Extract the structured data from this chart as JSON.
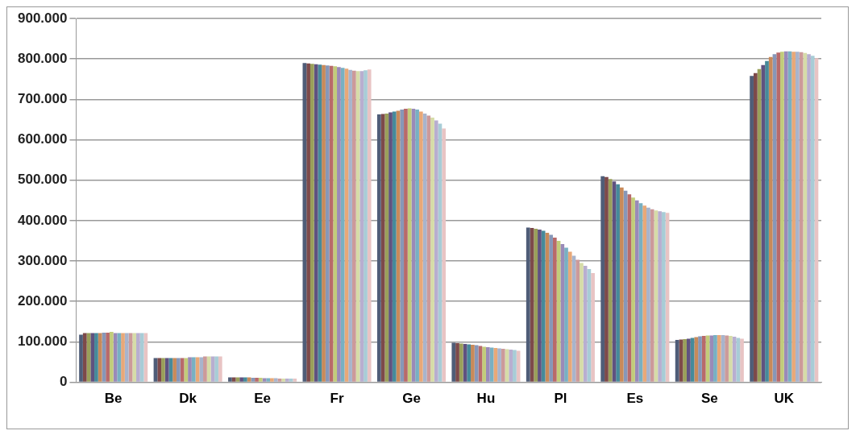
{
  "chart_data": {
    "type": "bar",
    "categories": [
      "Be",
      "Dk",
      "Ee",
      "Fr",
      "Ge",
      "Hu",
      "Pl",
      "Es",
      "Se",
      "UK"
    ],
    "ylim": [
      0,
      900000
    ],
    "yticks": [
      0,
      {
        "value": 100000,
        "label": "100.000"
      },
      {
        "value": 200000,
        "label": "200.000"
      },
      {
        "value": 300000,
        "label": "300.000"
      },
      {
        "value": 400000,
        "label": "400.000"
      },
      {
        "value": 500000,
        "label": "500.000"
      },
      {
        "value": 600000,
        "label": "600.000"
      },
      {
        "value": 700000,
        "label": "700.000"
      },
      {
        "value": 800000,
        "label": "800.000"
      },
      {
        "value": 900000,
        "label": "900.000"
      }
    ],
    "grid": "y",
    "legend": false,
    "series": [
      {
        "color": "#4f5d78",
        "values": [
          118000,
          60000,
          12000,
          790000,
          663000,
          98000,
          383000,
          510000,
          105000,
          758000
        ]
      },
      {
        "color": "#7d4a4a",
        "values": [
          122000,
          60000,
          12000,
          789000,
          664000,
          97000,
          382000,
          508000,
          106000,
          765000
        ]
      },
      {
        "color": "#9aa05a",
        "values": [
          122000,
          60000,
          12000,
          788000,
          665000,
          96000,
          380000,
          503000,
          107000,
          775000
        ]
      },
      {
        "color": "#5f5280",
        "values": [
          122000,
          60000,
          12000,
          787000,
          668000,
          95000,
          378000,
          497000,
          108000,
          785000
        ]
      },
      {
        "color": "#468a9a",
        "values": [
          122000,
          60000,
          12000,
          786000,
          670000,
          94000,
          375000,
          490000,
          110000,
          795000
        ]
      },
      {
        "color": "#c88a5a",
        "values": [
          122000,
          60000,
          12000,
          785000,
          672000,
          93000,
          370000,
          482000,
          112000,
          805000
        ]
      },
      {
        "color": "#8797b8",
        "values": [
          123000,
          60000,
          11000,
          784000,
          675000,
          92000,
          365000,
          474000,
          114000,
          812000
        ]
      },
      {
        "color": "#b86a6a",
        "values": [
          123000,
          60000,
          11000,
          783000,
          677000,
          90000,
          358000,
          465000,
          115000,
          816000
        ]
      },
      {
        "color": "#c2cc7a",
        "values": [
          125000,
          60000,
          11000,
          782000,
          678000,
          88000,
          350000,
          457000,
          116000,
          818000
        ]
      },
      {
        "color": "#9a8ab8",
        "values": [
          122000,
          62000,
          10000,
          780000,
          677000,
          87000,
          342000,
          450000,
          116000,
          819000
        ]
      },
      {
        "color": "#78b0c2",
        "values": [
          122000,
          62000,
          10000,
          778000,
          675000,
          86000,
          333000,
          443000,
          117000,
          819000
        ]
      },
      {
        "color": "#e8a878",
        "values": [
          122000,
          62000,
          10000,
          776000,
          670000,
          85000,
          323000,
          437000,
          117000,
          818000
        ]
      },
      {
        "color": "#a8b4cc",
        "values": [
          122000,
          62000,
          10000,
          773000,
          665000,
          84000,
          313000,
          432000,
          117000,
          818000
        ]
      },
      {
        "color": "#cc9a9a",
        "values": [
          122000,
          64000,
          9000,
          771000,
          660000,
          83000,
          303000,
          428000,
          116000,
          817000
        ]
      },
      {
        "color": "#d6dca8",
        "values": [
          122000,
          64000,
          9000,
          770000,
          655000,
          82000,
          295000,
          425000,
          115000,
          815000
        ]
      },
      {
        "color": "#b8aed0",
        "values": [
          122000,
          64000,
          9000,
          770000,
          648000,
          81000,
          288000,
          423000,
          113000,
          812000
        ]
      },
      {
        "color": "#a8ccd6",
        "values": [
          122000,
          64000,
          9000,
          772000,
          640000,
          80000,
          280000,
          421000,
          110000,
          808000
        ]
      },
      {
        "color": "#e8c4c4",
        "values": [
          122000,
          64000,
          9000,
          774000,
          628000,
          78000,
          270000,
          419000,
          108000,
          802000
        ]
      }
    ]
  }
}
